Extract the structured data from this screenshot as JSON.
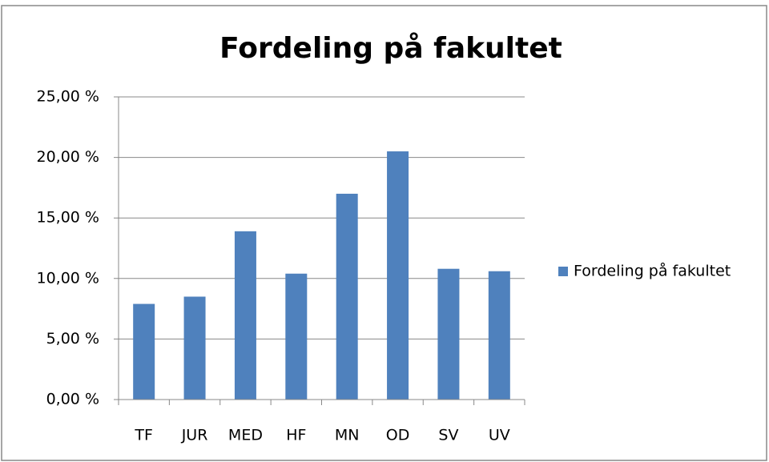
{
  "chart_data": {
    "type": "bar",
    "title": "Fordeling på fakultet",
    "categories": [
      "TF",
      "JUR",
      "MED",
      "HF",
      "MN",
      "OD",
      "SV",
      "UV"
    ],
    "series": [
      {
        "name": "Fordeling på fakultet",
        "color": "#4f81bd",
        "values": [
          7.9,
          8.5,
          13.9,
          10.4,
          17.0,
          20.5,
          10.8,
          10.6
        ]
      }
    ],
    "ylim": [
      0,
      25
    ],
    "yticks": [
      {
        "value": 0,
        "label": "0,00 %"
      },
      {
        "value": 5,
        "label": "5,00 %"
      },
      {
        "value": 10,
        "label": "10,00 %"
      },
      {
        "value": 15,
        "label": "15,00 %"
      },
      {
        "value": 20,
        "label": "20,00 %"
      },
      {
        "value": 25,
        "label": "25,00 %"
      }
    ],
    "grid": true,
    "legend": "right"
  }
}
